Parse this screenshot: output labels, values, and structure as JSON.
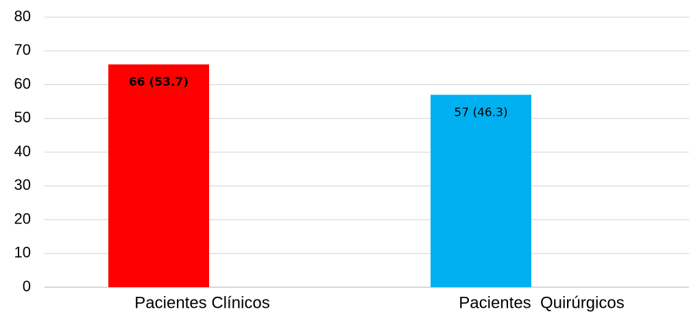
{
  "chart_data": {
    "type": "bar",
    "categories": [
      "Pacientes Clínicos",
      "Pacientes  Quirúrgicos"
    ],
    "values": [
      66,
      57
    ],
    "value_labels": [
      "66 (53.7)",
      "57 (46.3)"
    ],
    "colors": [
      "#ff0000",
      "#00b0f0"
    ],
    "ylim": [
      0,
      80
    ],
    "yticks": [
      0,
      10,
      20,
      30,
      40,
      50,
      60,
      70,
      80
    ],
    "grid": true
  }
}
